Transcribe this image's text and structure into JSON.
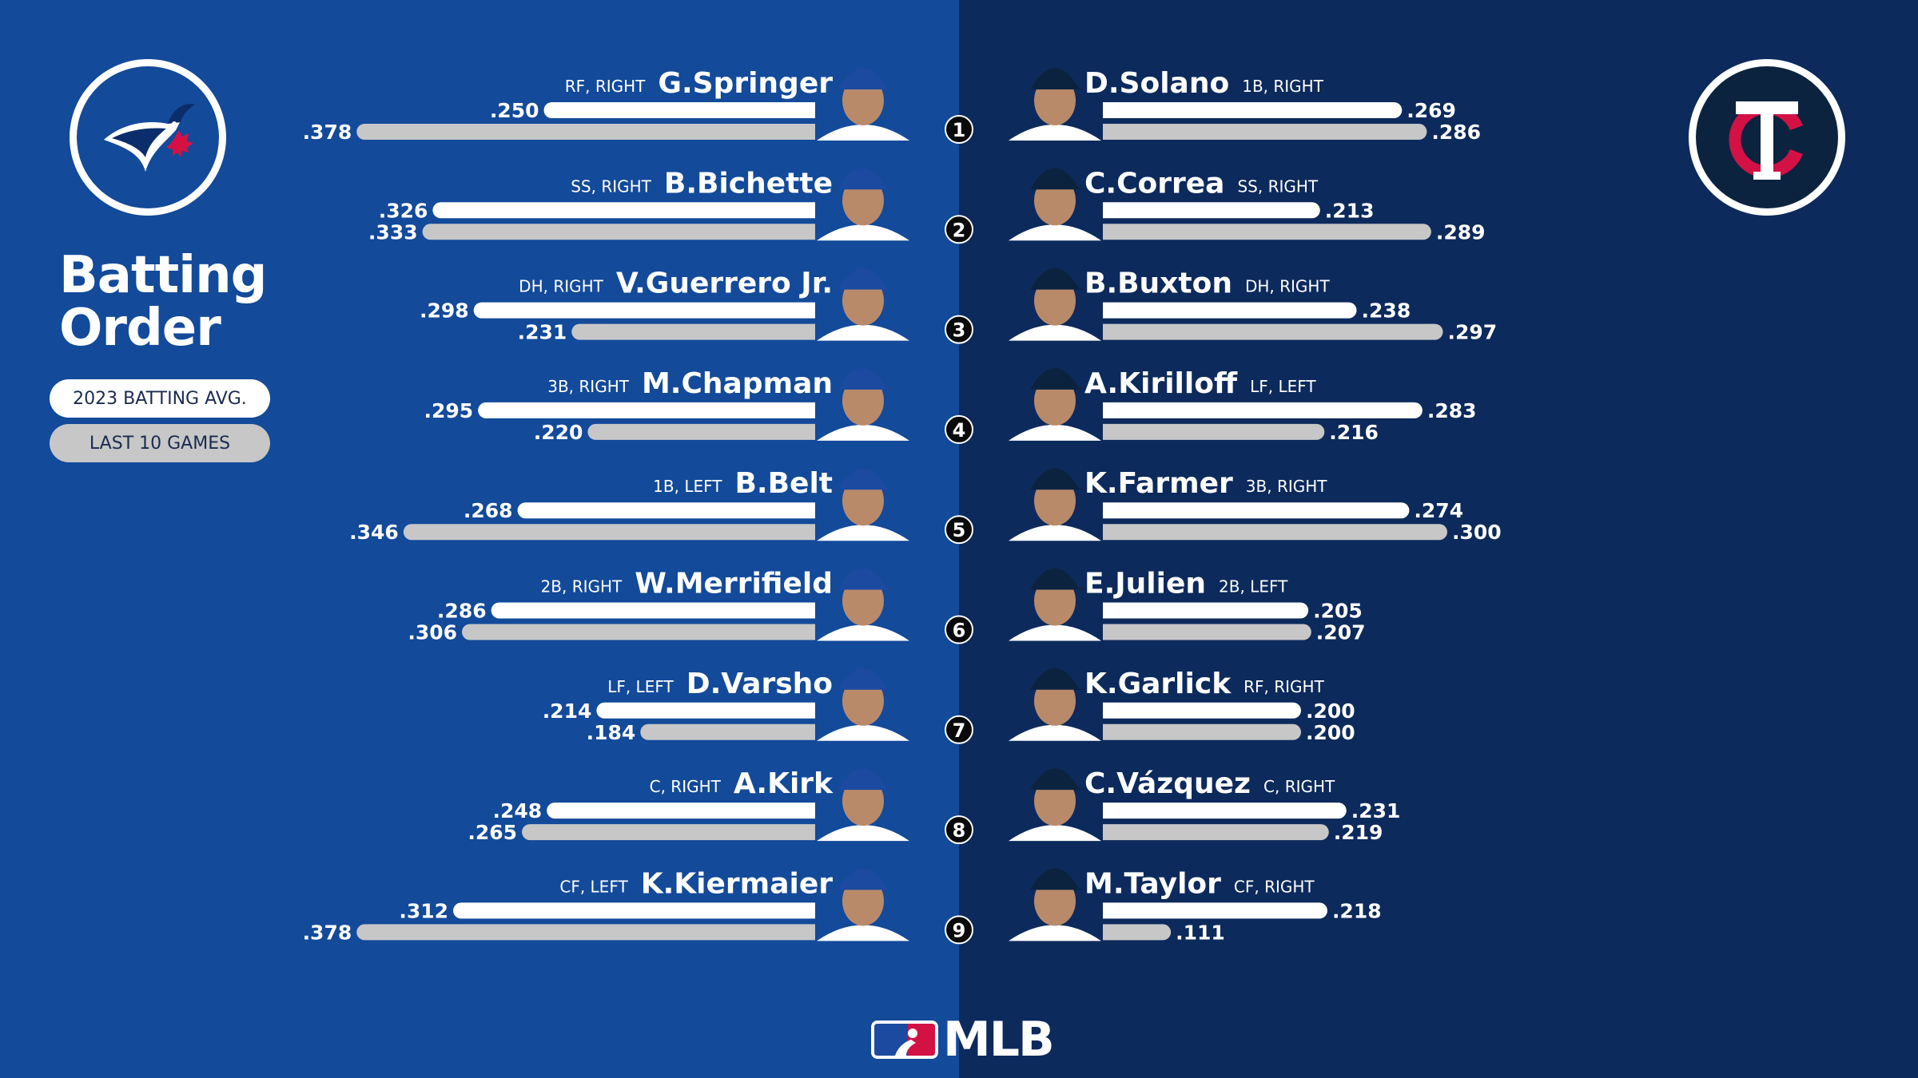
{
  "title_line1": "Batting",
  "title_line2": "Order",
  "legend": {
    "season_label": "2023 BATTING AVG.",
    "last10_label": "LAST 10 GAMES"
  },
  "brand": "MLB",
  "colors": {
    "left_background": "#134a9a",
    "right_background": "#0d2a5c",
    "season_bar": "#ffffff",
    "last10_bar": "#c7c7c7",
    "blue_jays_accent": "#134a9a",
    "twins_red": "#d31145",
    "twins_navy": "#0c2340"
  },
  "teams": {
    "away": {
      "name": "Toronto Blue Jays",
      "logo_icon": "blue-jays-logo"
    },
    "home": {
      "name": "Minnesota Twins",
      "logo_icon": "twins-logo"
    }
  },
  "chart_data": {
    "type": "bar",
    "orientation": "horizontal-diverging",
    "series": [
      {
        "name": "2023 BATTING AVG."
      },
      {
        "name": "LAST 10 GAMES"
      }
    ],
    "order_numbers": [
      "1",
      "2",
      "3",
      "4",
      "5",
      "6",
      "7",
      "8",
      "9"
    ],
    "away": [
      {
        "order": 1,
        "name": "G.Springer",
        "pos": "RF, RIGHT",
        "season": ".250",
        "last10": ".378"
      },
      {
        "order": 2,
        "name": "B.Bichette",
        "pos": "SS, RIGHT",
        "season": ".326",
        "last10": ".333"
      },
      {
        "order": 3,
        "name": "V.Guerrero Jr.",
        "pos": "DH, RIGHT",
        "season": ".298",
        "last10": ".231"
      },
      {
        "order": 4,
        "name": "M.Chapman",
        "pos": "3B, RIGHT",
        "season": ".295",
        "last10": ".220"
      },
      {
        "order": 5,
        "name": "B.Belt",
        "pos": "1B, LEFT",
        "season": ".268",
        "last10": ".346"
      },
      {
        "order": 6,
        "name": "W.Merrifield",
        "pos": "2B, RIGHT",
        "season": ".286",
        "last10": ".306"
      },
      {
        "order": 7,
        "name": "D.Varsho",
        "pos": "LF, LEFT",
        "season": ".214",
        "last10": ".184"
      },
      {
        "order": 8,
        "name": "A.Kirk",
        "pos": "C, RIGHT",
        "season": ".248",
        "last10": ".265"
      },
      {
        "order": 9,
        "name": "K.Kiermaier",
        "pos": "CF, LEFT",
        "season": ".312",
        "last10": ".378"
      }
    ],
    "home": [
      {
        "order": 1,
        "name": "D.Solano",
        "pos": "1B, RIGHT",
        "season": ".269",
        "last10": ".286"
      },
      {
        "order": 2,
        "name": "C.Correa",
        "pos": "SS, RIGHT",
        "season": ".213",
        "last10": ".289"
      },
      {
        "order": 3,
        "name": "B.Buxton",
        "pos": "DH, RIGHT",
        "season": ".238",
        "last10": ".297"
      },
      {
        "order": 4,
        "name": "A.Kirilloff",
        "pos": "LF, LEFT",
        "season": ".283",
        "last10": ".216"
      },
      {
        "order": 5,
        "name": "K.Farmer",
        "pos": "3B, RIGHT",
        "season": ".274",
        "last10": ".300"
      },
      {
        "order": 6,
        "name": "E.Julien",
        "pos": "2B, LEFT",
        "season": ".205",
        "last10": ".207"
      },
      {
        "order": 7,
        "name": "K.Garlick",
        "pos": "RF, RIGHT",
        "season": ".200",
        "last10": ".200"
      },
      {
        "order": 8,
        "name": "C.Vázquez",
        "pos": "C, RIGHT",
        "season": ".231",
        "last10": ".219"
      },
      {
        "order": 9,
        "name": "M.Taylor",
        "pos": "CF, RIGHT",
        "season": ".218",
        "last10": ".111"
      }
    ]
  }
}
